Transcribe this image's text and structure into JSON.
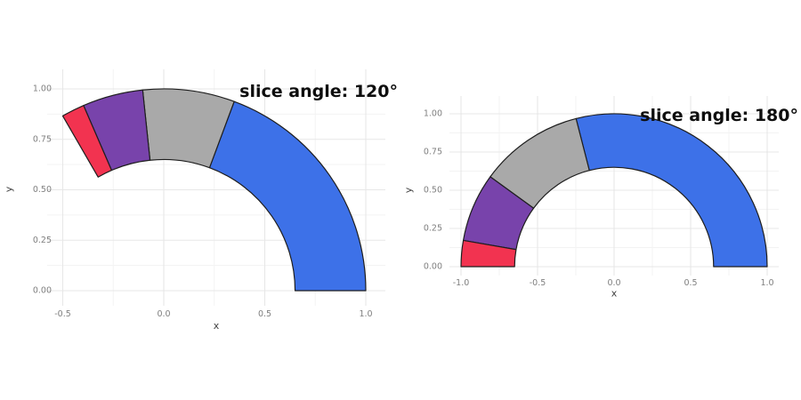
{
  "figure": {
    "description": "Two annular (donut) arc charts comparing slice angles",
    "background": "#FFFFFF"
  },
  "style": {
    "background": "#FFFFFF",
    "grid_major": "#E7E7E7",
    "grid_minor": "#F3F3F3",
    "axis_text": "#7F7F7F",
    "axis_title": "#404040",
    "slice_stroke": "#1E1E1E",
    "title_color": "#0E0E0E"
  },
  "chart_data": [
    {
      "type": "donut-arc",
      "title": "slice angle: 120°",
      "slice_angle_deg": 120,
      "start_angle_deg": 0,
      "direction": "counterclockwise",
      "inner_radius": 0.65,
      "outer_radius": 1.0,
      "xlabel": "x",
      "ylabel": "y",
      "x_ticks": [
        "-0.5",
        "0.0",
        "0.5",
        "1.0"
      ],
      "y_ticks": [
        "0.00",
        "0.25",
        "0.50",
        "0.75",
        "1.00"
      ],
      "xlim": [
        -0.58,
        1.1
      ],
      "ylim": [
        -0.07,
        1.1
      ],
      "grid": true,
      "segments": [
        {
          "name": "blue",
          "color": "#3D71E8",
          "fraction": 0.58,
          "angle_deg": 69.6
        },
        {
          "name": "gray",
          "color": "#A9A9A9",
          "fraction": 0.22,
          "angle_deg": 26.4
        },
        {
          "name": "purple",
          "color": "#7843AB",
          "fraction": 0.145,
          "angle_deg": 17.4
        },
        {
          "name": "red",
          "color": "#F23350",
          "fraction": 0.055,
          "angle_deg": 6.6
        }
      ]
    },
    {
      "type": "donut-arc",
      "title": "slice angle: 180°",
      "slice_angle_deg": 180,
      "start_angle_deg": 0,
      "direction": "counterclockwise",
      "inner_radius": 0.65,
      "outer_radius": 1.0,
      "xlabel": "x",
      "ylabel": "y",
      "x_ticks": [
        "-1.0",
        "-0.5",
        "0.0",
        "0.5",
        "1.0"
      ],
      "y_ticks": [
        "0.00",
        "0.25",
        "0.50",
        "0.75",
        "1.00"
      ],
      "xlim": [
        -1.08,
        1.08
      ],
      "ylim": [
        -0.06,
        1.12
      ],
      "grid": true,
      "segments": [
        {
          "name": "blue",
          "color": "#3D71E8",
          "fraction": 0.58,
          "angle_deg": 104.4
        },
        {
          "name": "gray",
          "color": "#A9A9A9",
          "fraction": 0.22,
          "angle_deg": 39.6
        },
        {
          "name": "purple",
          "color": "#7843AB",
          "fraction": 0.145,
          "angle_deg": 26.1
        },
        {
          "name": "red",
          "color": "#F23350",
          "fraction": 0.055,
          "angle_deg": 9.9
        }
      ]
    }
  ]
}
